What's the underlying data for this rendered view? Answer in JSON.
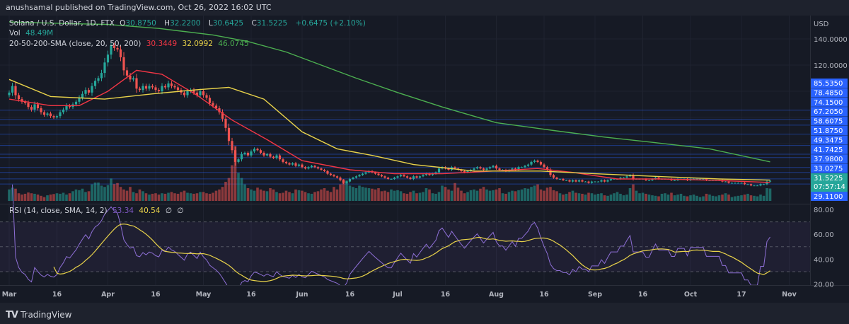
{
  "header": {
    "publisher_text": "anushsamal published on TradingView.com, Oct 26, 2022 16:02 UTC"
  },
  "legend": {
    "symbol": "Solana / U.S. Dollar, 1D, FTX",
    "open_label": "O",
    "open": "30.8750",
    "high_label": "H",
    "high": "32.2200",
    "low_label": "L",
    "low": "30.6425",
    "close_label": "C",
    "close": "31.5225",
    "change": "+0.6475 (+2.10%)",
    "vol_label": "Vol",
    "vol": "48.49M",
    "sma_label": "20-50-200-SMA (close, 20, 50, 200)",
    "sma20": "30.3449",
    "sma50": "32.0992",
    "sma200": "46.0745",
    "rsi_label": "RSI (14, close, SMA, 14, 2)",
    "rsi": "53.34",
    "rsi_sma": "40.54",
    "rsi_extra1": "∅",
    "rsi_extra2": "∅"
  },
  "price_axis": {
    "currency": "USD",
    "levels": [
      "85.5350",
      "78.4850",
      "74.1500",
      "67.2050",
      "58.6075",
      "51.8750",
      "49.3475",
      "41.7425",
      "37.9800",
      "33.0275",
      "29.1100"
    ],
    "last_price": "31.5225",
    "countdown": "07:57:14"
  },
  "footer": {
    "logo_mark": "TV",
    "logo_text": "TradingView"
  },
  "colors": {
    "background": "#161a25",
    "up": "#26a69a",
    "down": "#ef5350",
    "sma20": "#f23645",
    "sma50": "#e8d24a",
    "sma200": "#4caf50",
    "rsi": "#8e6fd6",
    "rsi_sma": "#e8d24a",
    "level_line": "#2962ff",
    "last_price": "#26a69a"
  },
  "chart_data": [
    {
      "type": "candlestick",
      "title": "Solana / U.S. Dollar, 1D, FTX",
      "ylabel": "USD",
      "ylim": [
        26,
        156
      ],
      "yticks": [
        "140.0000",
        "120.0000"
      ],
      "xticks": [
        [
          "2022-03-01",
          "Mar"
        ],
        [
          "2022-03-16",
          "16"
        ],
        [
          "2022-04-01",
          "Apr"
        ],
        [
          "2022-04-16",
          "16"
        ],
        [
          "2022-05-01",
          "May"
        ],
        [
          "2022-05-16",
          "16"
        ],
        [
          "2022-06-01",
          "Jun"
        ],
        [
          "2022-06-16",
          "16"
        ],
        [
          "2022-07-01",
          "Jul"
        ],
        [
          "2022-07-16",
          "16"
        ],
        [
          "2022-08-01",
          "Aug"
        ],
        [
          "2022-08-16",
          "16"
        ],
        [
          "2022-09-01",
          "Sep"
        ],
        [
          "2022-09-16",
          "16"
        ],
        [
          "2022-10-01",
          "Oct"
        ],
        [
          "2022-10-17",
          "17"
        ],
        [
          "2022-11-01",
          "Nov"
        ]
      ],
      "grid": true,
      "closes_by_month": {
        "2022-03": [
          99,
          104,
          97,
          94,
          92,
          91,
          88,
          86,
          90,
          87,
          84,
          82,
          83,
          81,
          80,
          81,
          84,
          86,
          89,
          88,
          90,
          92,
          95,
          98,
          101,
          99,
          104,
          108,
          110,
          114,
          122
        ],
        "2022-04": [
          128,
          135,
          133,
          132,
          126,
          116,
          112,
          109,
          110,
          102,
          101,
          104,
          102,
          104,
          103,
          101,
          100,
          104,
          103,
          106,
          104,
          103,
          101,
          99,
          97,
          100,
          101,
          99,
          97,
          100
        ],
        "2022-05": [
          97,
          95,
          91,
          89,
          87,
          84,
          79,
          72,
          62,
          55,
          46,
          48,
          52,
          53,
          51,
          54,
          56,
          55,
          53,
          51,
          52,
          50,
          49,
          51,
          48,
          46,
          45,
          44,
          45,
          43,
          44
        ],
        "2022-06": [
          42,
          41,
          42,
          43,
          42,
          41,
          40,
          39,
          37,
          36,
          35,
          34,
          32,
          30,
          31,
          33,
          34,
          35,
          36,
          37,
          38,
          39,
          38,
          37,
          36,
          35,
          34,
          33,
          33,
          34
        ],
        "2022-07": [
          35,
          36,
          35,
          34,
          33,
          35,
          34,
          35,
          36,
          37,
          36,
          37,
          38,
          41,
          42,
          41,
          40,
          42,
          41,
          40,
          39,
          38,
          39,
          40,
          41,
          42,
          41,
          40,
          41,
          42,
          43
        ],
        "2022-08": [
          41,
          40,
          40,
          39,
          40,
          41,
          40,
          42,
          42,
          43,
          44,
          46,
          47,
          46,
          44,
          42,
          40,
          36,
          34,
          33,
          33,
          32,
          32,
          31,
          32,
          31,
          32,
          31,
          31,
          30,
          31
        ],
        "2022-09": [
          31,
          31,
          32,
          31,
          32,
          33,
          33,
          33,
          34,
          34,
          35,
          36,
          33,
          33,
          33,
          33,
          32,
          32,
          33,
          34,
          33,
          33,
          33,
          33,
          32,
          32,
          33,
          33,
          33,
          32
        ],
        "2022-10": [
          33,
          33,
          33,
          33,
          33,
          32,
          32,
          32,
          32,
          32,
          31,
          31,
          30,
          30,
          30,
          30,
          30,
          29,
          29,
          28,
          28,
          28,
          29,
          29,
          31,
          31.5225
        ]
      },
      "volume_millions_by_month": {
        "2022-03": [
          45,
          52,
          48,
          30,
          25,
          28,
          33,
          30,
          28,
          25,
          20,
          15,
          22,
          25,
          27,
          30,
          28,
          32,
          25,
          30,
          38,
          45,
          42,
          48,
          35,
          38,
          65,
          72,
          72,
          60,
          55
        ],
        "2022-04": [
          62,
          88,
          66,
          70,
          55,
          45,
          40,
          55,
          35,
          30,
          45,
          38,
          30,
          25,
          28,
          30,
          25,
          30,
          28,
          32,
          35,
          30,
          28,
          35,
          40,
          32,
          30,
          28,
          30,
          35
        ],
        "2022-05": [
          35,
          30,
          28,
          32,
          40,
          45,
          55,
          75,
          90,
          140,
          215,
          110,
          90,
          65,
          50,
          45,
          40,
          52,
          45,
          40,
          38,
          50,
          45,
          35,
          30,
          32,
          40,
          35,
          30,
          45,
          42
        ],
        "2022-06": [
          40,
          35,
          30,
          28,
          35,
          38,
          45,
          50,
          40,
          35,
          55,
          45,
          65,
          85,
          80,
          60,
          55,
          50,
          60,
          55,
          52,
          50,
          48,
          45,
          50,
          38,
          40,
          35,
          45,
          40
        ],
        "2022-07": [
          42,
          38,
          30,
          28,
          35,
          40,
          30,
          32,
          35,
          50,
          45,
          30,
          28,
          35,
          60,
          55,
          45,
          40,
          70,
          52,
          40,
          30,
          35,
          42,
          45,
          40,
          48,
          55,
          45,
          40,
          42
        ],
        "2022-08": [
          45,
          50,
          30,
          28,
          35,
          40,
          38,
          42,
          45,
          50,
          48,
          55,
          60,
          65,
          45,
          40,
          52,
          55,
          42,
          38,
          30,
          25,
          28,
          35,
          40,
          32,
          30,
          28,
          25,
          32,
          30
        ],
        "2022-09": [
          25,
          28,
          30,
          22,
          20,
          25,
          30,
          35,
          28,
          22,
          25,
          50,
          65,
          40,
          30,
          32,
          28,
          25,
          22,
          20,
          18,
          28,
          30,
          25,
          32,
          22,
          25,
          28,
          20,
          18
        ],
        "2022-10": [
          22,
          25,
          20,
          15,
          18,
          28,
          25,
          20,
          18,
          22,
          25,
          30,
          25,
          15,
          18,
          20,
          22,
          25,
          28,
          22,
          20,
          18,
          25,
          20,
          50,
          48.49
        ]
      },
      "series": [
        {
          "name": "SMA 20",
          "points": [
            [
              "2022-03-01",
              94
            ],
            [
              "2022-03-14",
              89
            ],
            [
              "2022-03-23",
              89
            ],
            [
              "2022-04-01",
              100
            ],
            [
              "2022-04-10",
              116
            ],
            [
              "2022-04-18",
              113
            ],
            [
              "2022-04-29",
              97
            ],
            [
              "2022-05-10",
              78
            ],
            [
              "2022-05-21",
              63
            ],
            [
              "2022-06-01",
              47
            ],
            [
              "2022-06-16",
              40
            ],
            [
              "2022-06-30",
              37
            ],
            [
              "2022-07-15",
              37
            ],
            [
              "2022-07-31",
              39
            ],
            [
              "2022-08-14",
              41
            ],
            [
              "2022-08-25",
              38
            ],
            [
              "2022-09-08",
              33
            ],
            [
              "2022-09-22",
              33
            ],
            [
              "2022-10-08",
              32
            ],
            [
              "2022-10-26",
              30.3449
            ]
          ]
        },
        {
          "name": "SMA 50",
          "points": [
            [
              "2022-03-01",
              109
            ],
            [
              "2022-03-14",
              96
            ],
            [
              "2022-03-31",
              94
            ],
            [
              "2022-04-15",
              98
            ],
            [
              "2022-04-28",
              101
            ],
            [
              "2022-05-09",
              103
            ],
            [
              "2022-05-20",
              94
            ],
            [
              "2022-06-01",
              69
            ],
            [
              "2022-06-12",
              56
            ],
            [
              "2022-06-23",
              51
            ],
            [
              "2022-07-06",
              44
            ],
            [
              "2022-07-25",
              39
            ],
            [
              "2022-08-15",
              39
            ],
            [
              "2022-09-01",
              37
            ],
            [
              "2022-09-20",
              35
            ],
            [
              "2022-10-10",
              33
            ],
            [
              "2022-10-26",
              32.0992
            ]
          ]
        },
        {
          "name": "SMA 200",
          "points": [
            [
              "2022-03-01",
              153
            ],
            [
              "2022-03-15",
              152
            ],
            [
              "2022-04-01",
              151
            ],
            [
              "2022-04-17",
              148
            ],
            [
              "2022-05-04",
              143
            ],
            [
              "2022-05-15",
              138
            ],
            [
              "2022-05-27",
              130
            ],
            [
              "2022-06-07",
              120
            ],
            [
              "2022-06-18",
              110
            ],
            [
              "2022-07-01",
              99
            ],
            [
              "2022-07-15",
              88
            ],
            [
              "2022-08-01",
              76
            ],
            [
              "2022-08-19",
              70
            ],
            [
              "2022-09-04",
              65
            ],
            [
              "2022-09-19",
              61
            ],
            [
              "2022-10-07",
              56
            ],
            [
              "2022-10-26",
              46.0745
            ]
          ]
        }
      ]
    },
    {
      "type": "line",
      "title": "RSI (14, close, SMA, 14, 2)",
      "ylim": [
        16,
        84
      ],
      "yticks": [
        "80.00",
        "60.00",
        "40.00",
        "20.00"
      ],
      "bands": [
        70,
        50,
        30
      ],
      "source": "computed from closes (RSI 14, SMA 14)"
    }
  ]
}
